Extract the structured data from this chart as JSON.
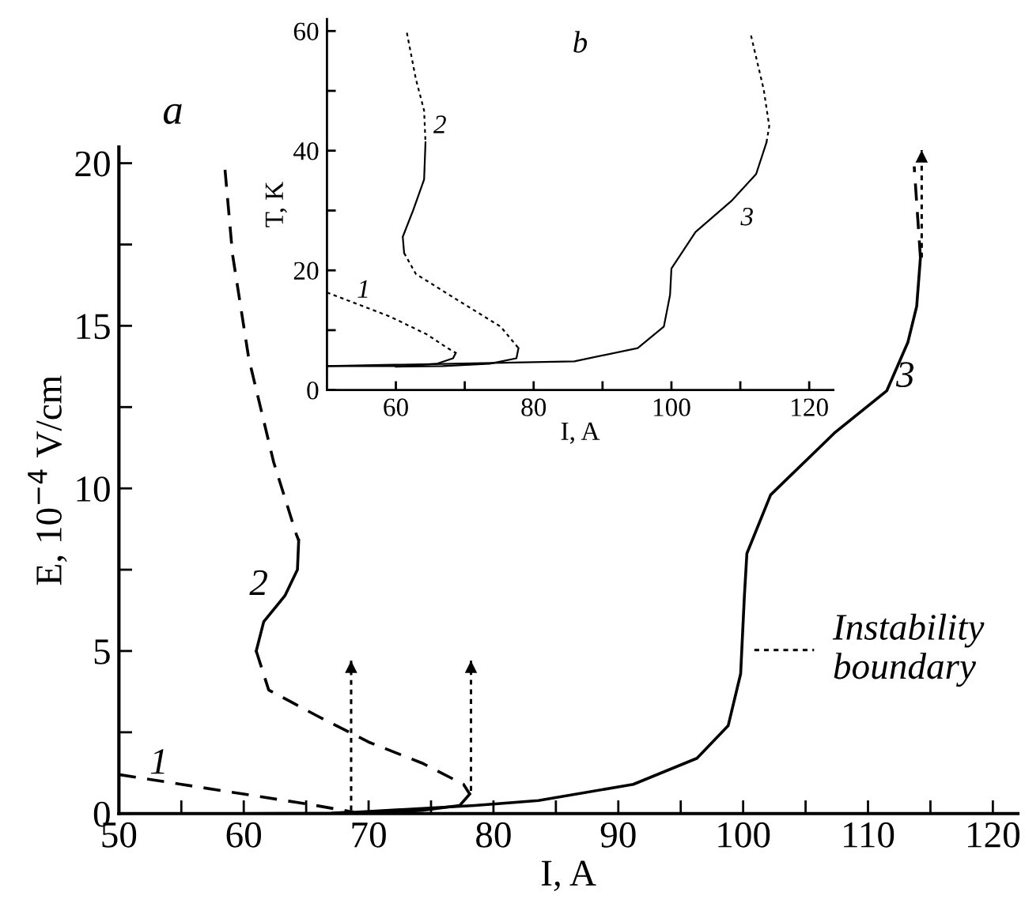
{
  "chart_data": [
    {
      "type": "line",
      "xlabel": "I, A",
      "ylabel": "E, 10$^{−4}$ V/cm",
      "xlim": [
        50,
        122
      ],
      "ylim": [
        0,
        20.5
      ],
      "xticks": [
        50,
        {
          "value": 55,
          "label": null
        },
        60,
        {
          "value": 65,
          "label": null
        },
        70,
        {
          "value": 75,
          "label": null
        },
        80,
        {
          "value": 85,
          "label": null
        },
        90,
        {
          "value": 95,
          "label": null
        },
        100,
        {
          "value": 105,
          "label": null
        },
        110,
        {
          "value": 115,
          "label": null
        },
        120
      ],
      "yticks": [
        0,
        {
          "value": 2.5,
          "label": null
        },
        5,
        {
          "value": 7.5,
          "label": null
        },
        10,
        {
          "value": 12.5,
          "label": null
        },
        15,
        {
          "value": 17.5,
          "label": null
        },
        20
      ],
      "grid": false,
      "legend": "lower right",
      "annotations": [
        "a"
      ],
      "series": [
        {
          "color": "#000000",
          "line_style": "dashed",
          "name": "1",
          "x": [
            50,
            55,
            60,
            65,
            68,
            68.7
          ],
          "values": [
            1.2,
            0.9,
            0.6,
            0.3,
            0.1,
            0.05
          ]
        },
        {
          "color": "#000000",
          "line_style": "solid",
          "x": [
            68.7,
            67,
            60,
            50
          ],
          "values": [
            0.05,
            0.01,
            0.0,
            0.0
          ]
        },
        {
          "color": "#000000",
          "line_style": "dashed",
          "x": [
            58.5,
            59.1,
            60.4,
            62.4,
            64.2,
            64.4
          ],
          "values": [
            19.8,
            17.2,
            14.0,
            10.8,
            8.6,
            8.4
          ]
        },
        {
          "color": "#000000",
          "line_style": "solid",
          "name": "2",
          "x": [
            64.4,
            64.3,
            63.3,
            61.6,
            61.0
          ],
          "values": [
            8.4,
            7.5,
            6.7,
            5.9,
            5.0
          ]
        },
        {
          "color": "#000000",
          "line_style": "dashed",
          "x": [
            61.0,
            62.0,
            65.9,
            70.0,
            74.3,
            77.6,
            78.1
          ],
          "values": [
            5.0,
            3.8,
            3.0,
            2.2,
            1.55,
            0.9,
            0.6
          ]
        },
        {
          "color": "#000000",
          "line_style": "solid",
          "x": [
            78.1,
            77.3,
            74.3,
            70,
            68
          ],
          "values": [
            0.6,
            0.25,
            0.1,
            0.02,
            0.0
          ]
        },
        {
          "color": "#000000",
          "line_style": "solid",
          "name": "3",
          "x": [
            67,
            78.5,
            83.6,
            91.2,
            96.3,
            98.8,
            99.8,
            100.1,
            100.3,
            102.2,
            107.3,
            111.5,
            113.2,
            113.9,
            114.2
          ],
          "values": [
            0.0,
            0.25,
            0.4,
            0.9,
            1.7,
            2.7,
            4.3,
            6.7,
            8.0,
            9.8,
            11.7,
            13.0,
            14.5,
            15.6,
            17.1
          ]
        },
        {
          "color": "#000000",
          "line_style": "dashed",
          "x": [
            114.2,
            113.7
          ],
          "values": [
            17.1,
            19.9
          ]
        },
        {
          "color": "#000000",
          "line_style": "dotted",
          "name": "Instability\nboundary",
          "x": [
            68.6,
            68.6,
            null,
            78.2,
            78.2,
            null,
            114.3,
            114.3
          ],
          "values": [
            0.1,
            4.7,
            null,
            0.7,
            4.7,
            null,
            17.1,
            20.4
          ]
        }
      ]
    },
    {
      "type": "line",
      "xlabel": "I, A",
      "ylabel": "T, K",
      "xlim": [
        50,
        123.5
      ],
      "ylim": [
        0,
        62
      ],
      "xticks": [
        60,
        {
          "value": 70,
          "label": null
        },
        80,
        {
          "value": 90,
          "label": null
        },
        100,
        {
          "value": 110,
          "label": null
        },
        120
      ],
      "yticks": [
        0,
        {
          "value": 10,
          "label": null
        },
        20,
        {
          "value": 30,
          "label": null
        },
        40,
        {
          "value": 50,
          "label": null
        },
        60
      ],
      "grid": false,
      "annotations": [
        "b"
      ],
      "series": [
        {
          "color": "#000000",
          "line_style": "dotted",
          "name": "1",
          "x": [
            50,
            59.1,
            64.5,
            67.5,
            68.7
          ],
          "values": [
            16.3,
            12.3,
            9.3,
            7.0,
            6.2
          ]
        },
        {
          "color": "#000000",
          "line_style": "solid",
          "x": [
            68.7,
            68.3,
            66,
            61.4,
            50
          ],
          "values": [
            6.2,
            5.3,
            4.4,
            4.0,
            4.0
          ]
        },
        {
          "color": "#000000",
          "line_style": "dotted",
          "name": "2",
          "x": [
            61.6,
            62.9,
            64.1,
            64.3
          ],
          "values": [
            59.7,
            52,
            46.7,
            41.4
          ]
        },
        {
          "color": "#000000",
          "line_style": "solid",
          "x": [
            64.3,
            64.1,
            62.5,
            61,
            61.2
          ],
          "values": [
            41.4,
            35.2,
            30,
            25.6,
            22.9
          ]
        },
        {
          "color": "#000000",
          "line_style": "dotted",
          "x": [
            61.2,
            62.9,
            69,
            75.2,
            77.8
          ],
          "values": [
            22.9,
            19.4,
            15,
            10.6,
            7.0
          ]
        },
        {
          "color": "#000000",
          "line_style": "solid",
          "x": [
            77.8,
            77.5,
            73.6,
            66.8,
            60
          ],
          "values": [
            7.0,
            5.3,
            4.4,
            4.0,
            3.9
          ]
        },
        {
          "color": "#000000",
          "line_style": "solid",
          "name": "3",
          "x": [
            50,
            85.9,
            95.1,
            98.9,
            99.8,
            100,
            103.5,
            108.8,
            112.3,
            113.8
          ],
          "values": [
            4.0,
            4.8,
            7.0,
            10.6,
            15.9,
            20.3,
            26.4,
            31.7,
            36.1,
            41.4
          ]
        },
        {
          "color": "#000000",
          "line_style": "dotted",
          "x": [
            113.8,
            114.2,
            113.4,
            111.5
          ],
          "values": [
            41.4,
            44.1,
            50.2,
            59.5
          ]
        }
      ]
    }
  ]
}
